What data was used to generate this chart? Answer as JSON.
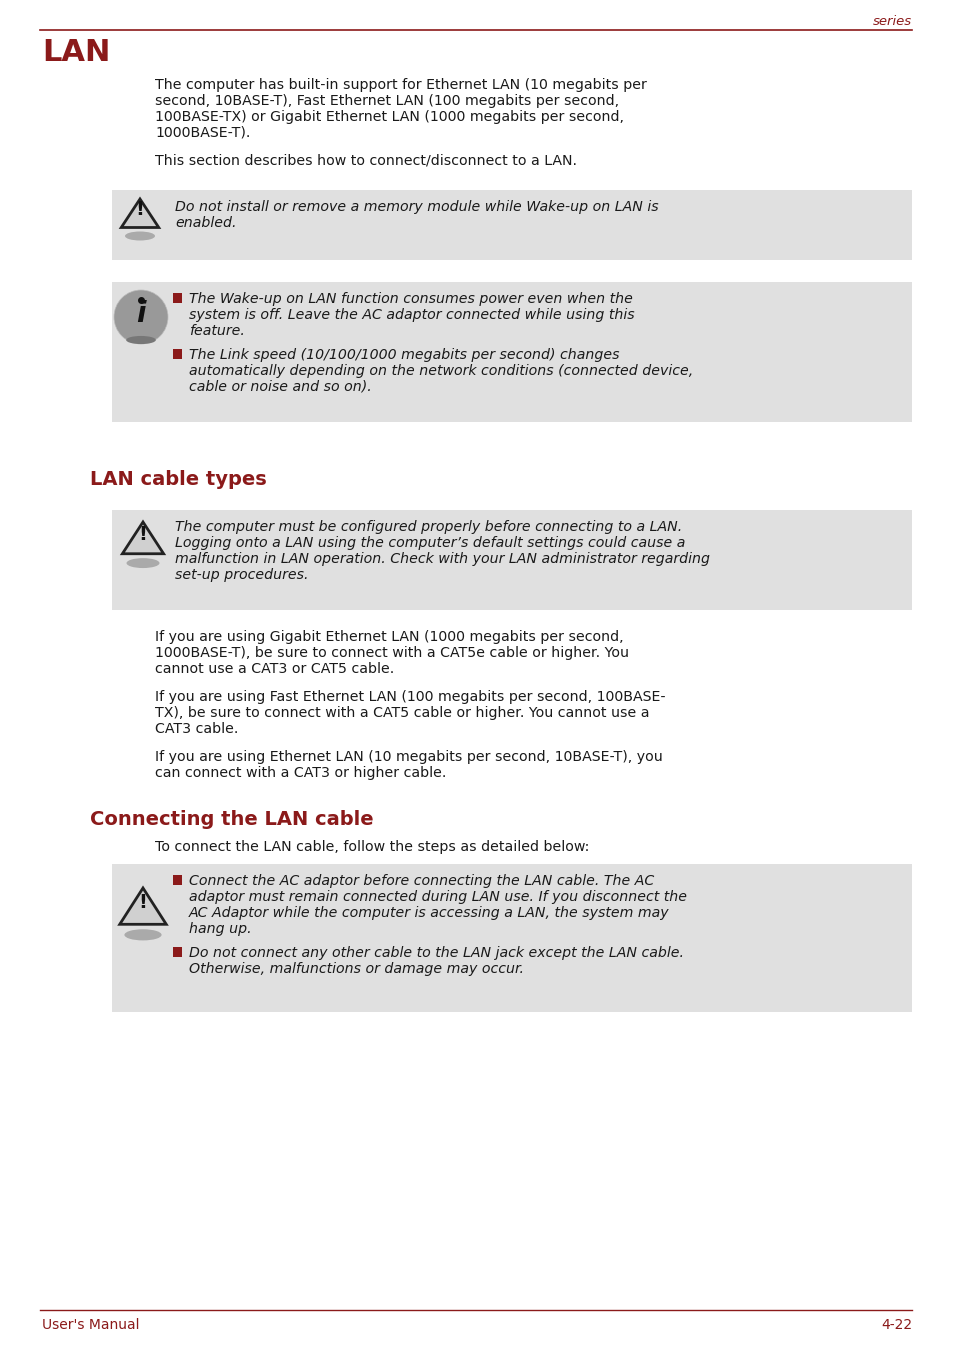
{
  "bg_color": "#ffffff",
  "header_color": "#8b1a1a",
  "text_color": "#1a1a1a",
  "gray_box_color": "#e0e0e0",
  "series_text": "series",
  "title_main": "LAN",
  "footer_left": "User's Manual",
  "footer_right": "4-22",
  "para1_line1": "The computer has built-in support for Ethernet LAN (10 megabits per",
  "para1_line2": "second, 10BASE-T), Fast Ethernet LAN (100 megabits per second,",
  "para1_line3": "100BASE-TX) or Gigabit Ethernet LAN (1000 megabits per second,",
  "para1_line4": "1000BASE-T).",
  "para2": "This section describes how to connect/disconnect to a LAN.",
  "warn1_line1": "Do not install or remove a memory module while Wake-up on LAN is",
  "warn1_line2": "enabled.",
  "info_b1_line1": "The Wake-up on LAN function consumes power even when the",
  "info_b1_line2": "system is off. Leave the AC adaptor connected while using this",
  "info_b1_line3": "feature.",
  "info_b2_line1": "The Link speed (10/100/1000 megabits per second) changes",
  "info_b2_line2": "automatically depending on the network conditions (connected device,",
  "info_b2_line3": "cable or noise and so on).",
  "section2_title": "LAN cable types",
  "warn2_line1": "The computer must be configured properly before connecting to a LAN.",
  "warn2_line2": "Logging onto a LAN using the computer’s default settings could cause a",
  "warn2_line3": "malfunction in LAN operation. Check with your LAN administrator regarding",
  "warn2_line4": "set-up procedures.",
  "cable_p1_l1": "If you are using Gigabit Ethernet LAN (1000 megabits per second,",
  "cable_p1_l2": "1000BASE-T), be sure to connect with a CAT5e cable or higher. You",
  "cable_p1_l3": "cannot use a CAT3 or CAT5 cable.",
  "cable_p2_l1": "If you are using Fast Ethernet LAN (100 megabits per second, 100BASE-",
  "cable_p2_l2": "TX), be sure to connect with a CAT5 cable or higher. You cannot use a",
  "cable_p2_l3": "CAT3 cable.",
  "cable_p3_l1": "If you are using Ethernet LAN (10 megabits per second, 10BASE-T), you",
  "cable_p3_l2": "can connect with a CAT3 or higher cable.",
  "section3_title": "Connecting the LAN cable",
  "connect_intro": "To connect the LAN cable, follow the steps as detailed below:",
  "cb1_l1": "Connect the AC adaptor before connecting the LAN cable. The AC",
  "cb1_l2": "adaptor must remain connected during LAN use. If you disconnect the",
  "cb1_l3": "AC Adaptor while the computer is accessing a LAN, the system may",
  "cb1_l4": "hang up.",
  "cb2_l1": "Do not connect any other cable to the LAN jack except the LAN cable.",
  "cb2_l2": "Otherwise, malfunctions or damage may occur.",
  "icon_warn_color": "#555555",
  "icon_info_color": "#888888",
  "bullet_color": "#8b1a1a"
}
